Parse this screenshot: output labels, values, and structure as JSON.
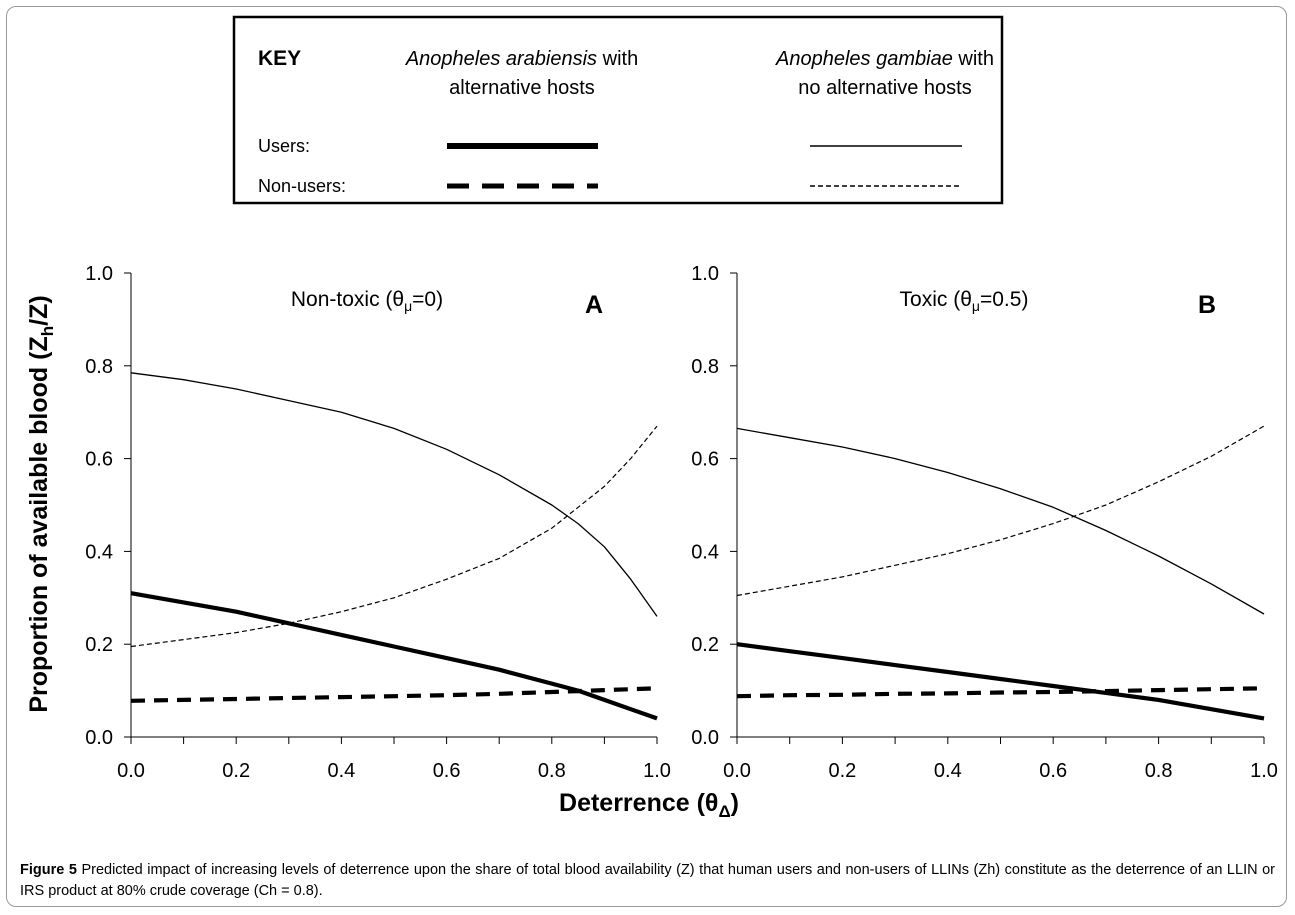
{
  "key": {
    "title": "KEY",
    "col1_line1": "Anopheles arabiensis",
    "col1_line1_suffix": " with",
    "col1_line2": "alternative hosts",
    "col2_line1": "Anopheles gambiae",
    "col2_line1_suffix": " with",
    "col2_line2": "no alternative hosts",
    "users_label": "Users:",
    "nonusers_label": "Non-users:"
  },
  "ylabel_main": "Proportion of available blood (Z",
  "ylabel_sub": "h",
  "ylabel_tail": "/Z)",
  "xlabel_main": "Deterrence (θ",
  "xlabel_sub": "Δ",
  "xlabel_tail": ")",
  "chart_data": [
    {
      "type": "line",
      "panel_letter": "A",
      "annotation": "Non-toxic (θμ=0)",
      "annotation_parts": [
        "Non-toxic (θ",
        "μ",
        "=0)"
      ],
      "xlim": [
        0,
        1
      ],
      "ylim": [
        0,
        1
      ],
      "x_ticks": [
        "0.0",
        "0.2",
        "0.4",
        "0.6",
        "0.8",
        "1.0"
      ],
      "y_ticks": [
        "0.0",
        "0.2",
        "0.4",
        "0.6",
        "0.8",
        "1.0"
      ],
      "x": [
        0,
        0.1,
        0.2,
        0.3,
        0.4,
        0.5,
        0.6,
        0.7,
        0.8,
        0.85,
        0.9,
        0.95,
        1.0
      ],
      "series": [
        {
          "name": "Anopheles arabiensis with alternative hosts — Users",
          "style": "thick-solid",
          "values": [
            0.31,
            0.29,
            0.27,
            0.245,
            0.22,
            0.195,
            0.17,
            0.145,
            0.115,
            0.1,
            0.08,
            0.06,
            0.04
          ]
        },
        {
          "name": "Anopheles arabiensis with alternative hosts — Non-users",
          "style": "thick-dashed",
          "values": [
            0.078,
            0.08,
            0.082,
            0.084,
            0.086,
            0.088,
            0.09,
            0.093,
            0.097,
            0.099,
            0.101,
            0.103,
            0.105
          ]
        },
        {
          "name": "Anopheles gambiae with no alternative hosts — Users",
          "style": "thin-solid",
          "values": [
            0.785,
            0.77,
            0.75,
            0.725,
            0.7,
            0.665,
            0.62,
            0.565,
            0.5,
            0.46,
            0.41,
            0.34,
            0.26
          ]
        },
        {
          "name": "Anopheles gambiae with no alternative hosts — Non-users",
          "style": "thin-dashed",
          "values": [
            0.195,
            0.21,
            0.225,
            0.245,
            0.27,
            0.3,
            0.34,
            0.385,
            0.45,
            0.495,
            0.54,
            0.6,
            0.67
          ]
        }
      ]
    },
    {
      "type": "line",
      "panel_letter": "B",
      "annotation": "Toxic (θμ=0.5)",
      "annotation_parts": [
        "Toxic (θ",
        "μ",
        "=0.5)"
      ],
      "xlim": [
        0,
        1
      ],
      "ylim": [
        0,
        1
      ],
      "x_ticks": [
        "0.0",
        "0.2",
        "0.4",
        "0.6",
        "0.8",
        "1.0"
      ],
      "y_ticks": [
        "0.0",
        "0.2",
        "0.4",
        "0.6",
        "0.8",
        "1.0"
      ],
      "x": [
        0,
        0.1,
        0.2,
        0.3,
        0.4,
        0.5,
        0.6,
        0.7,
        0.8,
        0.9,
        1.0
      ],
      "series": [
        {
          "name": "Anopheles arabiensis with alternative hosts — Users",
          "style": "thick-solid",
          "values": [
            0.2,
            0.185,
            0.17,
            0.155,
            0.14,
            0.125,
            0.11,
            0.095,
            0.08,
            0.06,
            0.04
          ]
        },
        {
          "name": "Anopheles arabiensis with alternative hosts — Non-users",
          "style": "thick-dashed",
          "values": [
            0.088,
            0.09,
            0.091,
            0.093,
            0.094,
            0.096,
            0.097,
            0.099,
            0.101,
            0.103,
            0.105
          ]
        },
        {
          "name": "Anopheles gambiae with no alternative hosts — Users",
          "style": "thin-solid",
          "values": [
            0.665,
            0.645,
            0.625,
            0.6,
            0.57,
            0.535,
            0.495,
            0.445,
            0.39,
            0.33,
            0.265
          ]
        },
        {
          "name": "Anopheles gambiae with no alternative hosts — Non-users",
          "style": "thin-dashed",
          "values": [
            0.305,
            0.325,
            0.345,
            0.37,
            0.395,
            0.425,
            0.46,
            0.5,
            0.55,
            0.605,
            0.67
          ]
        }
      ]
    }
  ],
  "caption": {
    "figure_label": "Figure 5",
    "text": " Predicted impact of increasing levels of deterrence upon the share of total blood availability (Z) that human users and non-users of LLINs (Zh) constitute as the deterrence of an LLIN or IRS product at 80% crude coverage (Ch = 0.8)."
  }
}
